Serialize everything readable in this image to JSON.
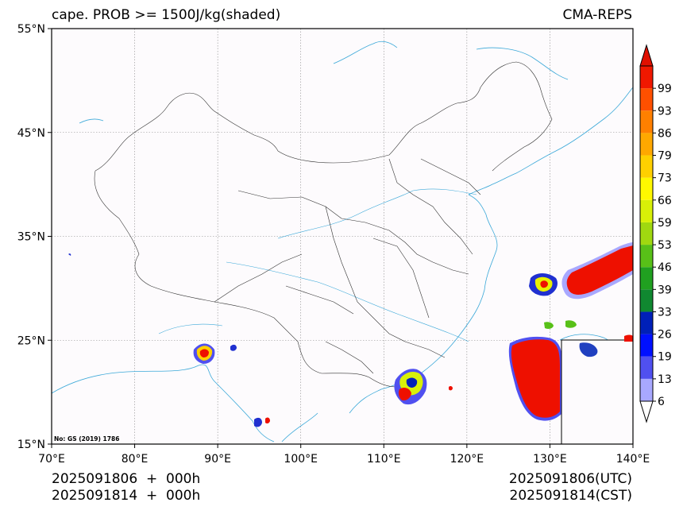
{
  "header": {
    "title": "cape. PROB >= 1500J/kg(shaded)",
    "model": "CMA-REPS"
  },
  "footer": {
    "init_line1": "2025091806  +  000h",
    "init_line2": "2025091814  +  000h",
    "valid_utc": "2025091806(UTC)",
    "valid_cst": "2025091814(CST)"
  },
  "map": {
    "review_no": "No: GS (2019) 1786",
    "lon_ticks": [
      "70°E",
      "80°E",
      "90°E",
      "100°E",
      "110°E",
      "120°E",
      "130°E",
      "140°E"
    ],
    "lat_ticks": [
      "15°N",
      "25°N",
      "35°N",
      "45°N",
      "55°N"
    ],
    "lon_values": [
      70,
      80,
      90,
      100,
      110,
      120,
      130,
      140
    ],
    "lat_values": [
      15,
      25,
      35,
      45,
      55
    ]
  },
  "colorbar": {
    "labels": [
      "6",
      "13",
      "19",
      "26",
      "33",
      "39",
      "46",
      "53",
      "59",
      "66",
      "73",
      "79",
      "86",
      "93",
      "99"
    ],
    "colors": [
      "#a8a8ff",
      "#5050f0",
      "#0010ff",
      "#0020b8",
      "#108830",
      "#20a020",
      "#58c018",
      "#a0d810",
      "#d8f008",
      "#fff800",
      "#ffd000",
      "#ffa800",
      "#ff8000",
      "#ff5000",
      "#f01800"
    ],
    "over_color": "#e01000",
    "under_color": "#ffffff"
  }
}
